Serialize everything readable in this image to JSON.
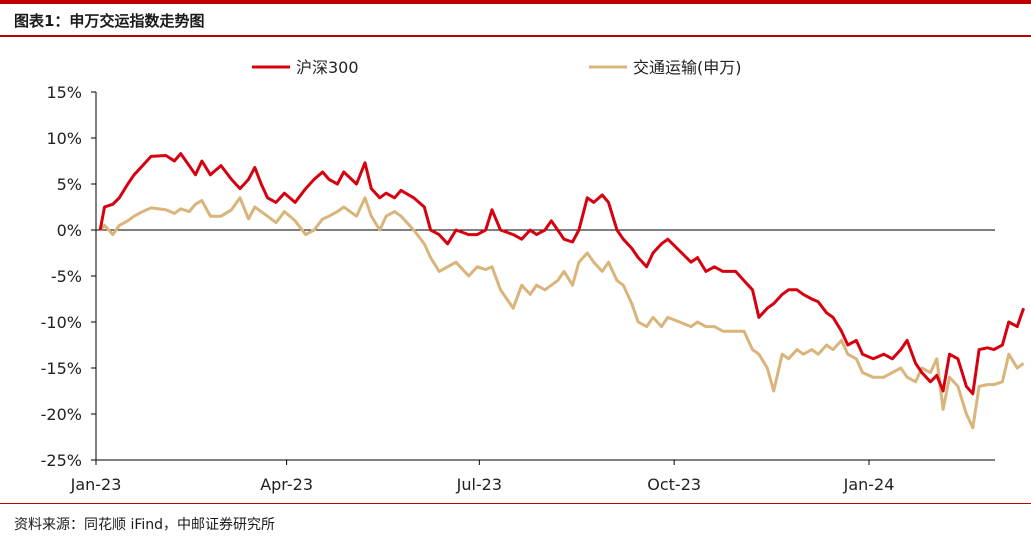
{
  "figure": {
    "title": "图表1：申万交运指数走势图",
    "source": "资料来源：同花顺 iFind，中邮证券研究所"
  },
  "colors": {
    "rule": "#c00000",
    "hs300": "#d7000f",
    "transport": "#d9b47b",
    "axis": "#000000"
  },
  "chart_data": {
    "type": "line",
    "title": "",
    "xlabel": "",
    "ylabel": "",
    "ylim": [
      -25,
      15
    ],
    "yticks": [
      15,
      10,
      5,
      0,
      -5,
      -10,
      -15,
      -20,
      -25
    ],
    "ytick_labels": [
      "15%",
      "10%",
      "5%",
      "0%",
      "-5%",
      "-10%",
      "-15%",
      "-20%",
      "-25%"
    ],
    "xlim": [
      "2023-01-01",
      "2024-03-01"
    ],
    "xticks": [
      "2023-01-01",
      "2023-04-01",
      "2023-07-01",
      "2023-10-01",
      "2024-01-01"
    ],
    "xtick_labels": [
      "Jan-23",
      "Apr-23",
      "Jul-23",
      "Oct-23",
      "Jan-24"
    ],
    "legend_position": "top",
    "grid": false,
    "zero_line": true,
    "series": [
      {
        "name": "沪深300",
        "color": "#d7000f",
        "points": [
          [
            "2023-01-03",
            0.0
          ],
          [
            "2023-01-05",
            2.5
          ],
          [
            "2023-01-09",
            2.8
          ],
          [
            "2023-01-12",
            3.5
          ],
          [
            "2023-01-16",
            5.0
          ],
          [
            "2023-01-19",
            6.0
          ],
          [
            "2023-01-23",
            7.0
          ],
          [
            "2023-01-27",
            8.0
          ],
          [
            "2023-02-03",
            8.1
          ],
          [
            "2023-02-07",
            7.5
          ],
          [
            "2023-02-10",
            8.3
          ],
          [
            "2023-02-14",
            7.0
          ],
          [
            "2023-02-17",
            6.0
          ],
          [
            "2023-02-20",
            7.5
          ],
          [
            "2023-02-24",
            6.0
          ],
          [
            "2023-03-01",
            7.0
          ],
          [
            "2023-03-06",
            5.5
          ],
          [
            "2023-03-10",
            4.5
          ],
          [
            "2023-03-14",
            5.5
          ],
          [
            "2023-03-17",
            6.8
          ],
          [
            "2023-03-20",
            5.0
          ],
          [
            "2023-03-23",
            3.5
          ],
          [
            "2023-03-27",
            3.0
          ],
          [
            "2023-03-31",
            4.0
          ],
          [
            "2023-04-05",
            3.0
          ],
          [
            "2023-04-10",
            4.5
          ],
          [
            "2023-04-14",
            5.5
          ],
          [
            "2023-04-18",
            6.3
          ],
          [
            "2023-04-21",
            5.5
          ],
          [
            "2023-04-25",
            5.0
          ],
          [
            "2023-04-28",
            6.3
          ],
          [
            "2023-05-04",
            5.0
          ],
          [
            "2023-05-08",
            7.3
          ],
          [
            "2023-05-11",
            4.5
          ],
          [
            "2023-05-15",
            3.5
          ],
          [
            "2023-05-18",
            4.0
          ],
          [
            "2023-05-22",
            3.5
          ],
          [
            "2023-05-25",
            4.3
          ],
          [
            "2023-05-31",
            3.5
          ],
          [
            "2023-06-05",
            2.5
          ],
          [
            "2023-06-08",
            0.0
          ],
          [
            "2023-06-12",
            -0.5
          ],
          [
            "2023-06-16",
            -1.5
          ],
          [
            "2023-06-20",
            0.0
          ],
          [
            "2023-06-26",
            -0.5
          ],
          [
            "2023-06-30",
            -0.5
          ],
          [
            "2023-07-04",
            0.0
          ],
          [
            "2023-07-07",
            2.2
          ],
          [
            "2023-07-11",
            0.0
          ],
          [
            "2023-07-17",
            -0.5
          ],
          [
            "2023-07-21",
            -1.0
          ],
          [
            "2023-07-25",
            0.0
          ],
          [
            "2023-07-28",
            -0.5
          ],
          [
            "2023-08-01",
            0.0
          ],
          [
            "2023-08-04",
            1.0
          ],
          [
            "2023-08-07",
            0.0
          ],
          [
            "2023-08-10",
            -1.0
          ],
          [
            "2023-08-14",
            -1.3
          ],
          [
            "2023-08-17",
            0.0
          ],
          [
            "2023-08-21",
            3.5
          ],
          [
            "2023-08-24",
            3.0
          ],
          [
            "2023-08-28",
            3.8
          ],
          [
            "2023-08-31",
            3.0
          ],
          [
            "2023-09-04",
            0.0
          ],
          [
            "2023-09-07",
            -1.0
          ],
          [
            "2023-09-11",
            -2.0
          ],
          [
            "2023-09-14",
            -3.0
          ],
          [
            "2023-09-18",
            -4.0
          ],
          [
            "2023-09-21",
            -2.5
          ],
          [
            "2023-09-25",
            -1.5
          ],
          [
            "2023-09-28",
            -1.0
          ],
          [
            "2023-10-09",
            -3.5
          ],
          [
            "2023-10-12",
            -3.0
          ],
          [
            "2023-10-16",
            -4.5
          ],
          [
            "2023-10-20",
            -4.0
          ],
          [
            "2023-10-24",
            -4.5
          ],
          [
            "2023-10-30",
            -4.5
          ],
          [
            "2023-11-03",
            -5.5
          ],
          [
            "2023-11-07",
            -6.5
          ],
          [
            "2023-11-10",
            -9.5
          ],
          [
            "2023-11-14",
            -8.5
          ],
          [
            "2023-11-17",
            -8.0
          ],
          [
            "2023-11-21",
            -7.0
          ],
          [
            "2023-11-24",
            -6.5
          ],
          [
            "2023-11-28",
            -6.5
          ],
          [
            "2023-12-01",
            -7.0
          ],
          [
            "2023-12-05",
            -7.5
          ],
          [
            "2023-12-08",
            -7.8
          ],
          [
            "2023-12-12",
            -9.0
          ],
          [
            "2023-12-15",
            -9.5
          ],
          [
            "2023-12-19",
            -11.0
          ],
          [
            "2023-12-22",
            -12.5
          ],
          [
            "2023-12-26",
            -12.0
          ],
          [
            "2023-12-29",
            -13.5
          ],
          [
            "2024-01-03",
            -14.0
          ],
          [
            "2024-01-08",
            -13.5
          ],
          [
            "2024-01-12",
            -14.0
          ],
          [
            "2024-01-16",
            -13.0
          ],
          [
            "2024-01-19",
            -12.0
          ],
          [
            "2024-01-23",
            -14.5
          ],
          [
            "2024-01-26",
            -15.5
          ],
          [
            "2024-01-30",
            -16.5
          ],
          [
            "2024-02-02",
            -15.8
          ],
          [
            "2024-02-05",
            -17.5
          ],
          [
            "2024-02-08",
            -13.5
          ],
          [
            "2024-02-12",
            -14.0
          ],
          [
            "2024-02-16",
            -17.0
          ],
          [
            "2024-02-19",
            -17.8
          ],
          [
            "2024-02-22",
            -13.0
          ],
          [
            "2024-02-26",
            -12.8
          ],
          [
            "2024-02-29",
            -13.0
          ],
          [
            "2024-03-04",
            -12.5
          ],
          [
            "2024-03-07",
            -10.0
          ],
          [
            "2024-03-11",
            -10.5
          ],
          [
            "2024-03-14",
            -8.5
          ]
        ]
      },
      {
        "name": "交通运输(申万)",
        "color": "#d9b47b",
        "points": [
          [
            "2023-01-03",
            0.0
          ],
          [
            "2023-01-05",
            0.5
          ],
          [
            "2023-01-09",
            -0.5
          ],
          [
            "2023-01-12",
            0.5
          ],
          [
            "2023-01-16",
            1.0
          ],
          [
            "2023-01-19",
            1.5
          ],
          [
            "2023-01-23",
            2.0
          ],
          [
            "2023-01-27",
            2.4
          ],
          [
            "2023-02-03",
            2.2
          ],
          [
            "2023-02-07",
            1.8
          ],
          [
            "2023-02-10",
            2.3
          ],
          [
            "2023-02-14",
            2.0
          ],
          [
            "2023-02-17",
            2.8
          ],
          [
            "2023-02-20",
            3.2
          ],
          [
            "2023-02-24",
            1.5
          ],
          [
            "2023-03-01",
            1.5
          ],
          [
            "2023-03-06",
            2.2
          ],
          [
            "2023-03-10",
            3.5
          ],
          [
            "2023-03-14",
            1.2
          ],
          [
            "2023-03-17",
            2.5
          ],
          [
            "2023-03-20",
            2.0
          ],
          [
            "2023-03-23",
            1.5
          ],
          [
            "2023-03-27",
            0.8
          ],
          [
            "2023-03-31",
            2.0
          ],
          [
            "2023-04-05",
            1.0
          ],
          [
            "2023-04-10",
            -0.5
          ],
          [
            "2023-04-14",
            0.0
          ],
          [
            "2023-04-18",
            1.2
          ],
          [
            "2023-04-21",
            1.5
          ],
          [
            "2023-04-25",
            2.0
          ],
          [
            "2023-04-28",
            2.5
          ],
          [
            "2023-05-04",
            1.5
          ],
          [
            "2023-05-08",
            3.5
          ],
          [
            "2023-05-11",
            1.5
          ],
          [
            "2023-05-15",
            0.0
          ],
          [
            "2023-05-18",
            1.5
          ],
          [
            "2023-05-22",
            2.0
          ],
          [
            "2023-05-25",
            1.5
          ],
          [
            "2023-05-31",
            0.0
          ],
          [
            "2023-06-05",
            -1.5
          ],
          [
            "2023-06-08",
            -3.0
          ],
          [
            "2023-06-12",
            -4.5
          ],
          [
            "2023-06-16",
            -4.0
          ],
          [
            "2023-06-20",
            -3.5
          ],
          [
            "2023-06-26",
            -5.0
          ],
          [
            "2023-06-30",
            -4.0
          ],
          [
            "2023-07-04",
            -4.3
          ],
          [
            "2023-07-07",
            -4.0
          ],
          [
            "2023-07-11",
            -6.5
          ],
          [
            "2023-07-17",
            -8.5
          ],
          [
            "2023-07-21",
            -6.0
          ],
          [
            "2023-07-25",
            -7.0
          ],
          [
            "2023-07-28",
            -6.0
          ],
          [
            "2023-08-01",
            -6.5
          ],
          [
            "2023-08-04",
            -6.0
          ],
          [
            "2023-08-07",
            -5.5
          ],
          [
            "2023-08-10",
            -4.5
          ],
          [
            "2023-08-14",
            -6.0
          ],
          [
            "2023-08-17",
            -3.5
          ],
          [
            "2023-08-21",
            -2.5
          ],
          [
            "2023-08-24",
            -3.5
          ],
          [
            "2023-08-28",
            -4.5
          ],
          [
            "2023-08-31",
            -3.5
          ],
          [
            "2023-09-04",
            -5.5
          ],
          [
            "2023-09-07",
            -6.0
          ],
          [
            "2023-09-11",
            -8.0
          ],
          [
            "2023-09-14",
            -10.0
          ],
          [
            "2023-09-18",
            -10.5
          ],
          [
            "2023-09-21",
            -9.5
          ],
          [
            "2023-09-25",
            -10.5
          ],
          [
            "2023-09-28",
            -9.5
          ],
          [
            "2023-10-09",
            -10.5
          ],
          [
            "2023-10-12",
            -10.0
          ],
          [
            "2023-10-16",
            -10.5
          ],
          [
            "2023-10-20",
            -10.5
          ],
          [
            "2023-10-24",
            -11.0
          ],
          [
            "2023-10-30",
            -11.0
          ],
          [
            "2023-11-03",
            -11.0
          ],
          [
            "2023-11-07",
            -13.0
          ],
          [
            "2023-11-10",
            -13.5
          ],
          [
            "2023-11-14",
            -15.0
          ],
          [
            "2023-11-17",
            -17.5
          ],
          [
            "2023-11-21",
            -13.5
          ],
          [
            "2023-11-24",
            -14.0
          ],
          [
            "2023-11-28",
            -13.0
          ],
          [
            "2023-12-01",
            -13.5
          ],
          [
            "2023-12-05",
            -13.0
          ],
          [
            "2023-12-08",
            -13.5
          ],
          [
            "2023-12-12",
            -12.5
          ],
          [
            "2023-12-15",
            -13.0
          ],
          [
            "2023-12-19",
            -12.0
          ],
          [
            "2023-12-22",
            -13.5
          ],
          [
            "2023-12-26",
            -14.0
          ],
          [
            "2023-12-29",
            -15.5
          ],
          [
            "2024-01-03",
            -16.0
          ],
          [
            "2024-01-08",
            -16.0
          ],
          [
            "2024-01-12",
            -15.5
          ],
          [
            "2024-01-16",
            -15.0
          ],
          [
            "2024-01-19",
            -16.0
          ],
          [
            "2024-01-23",
            -16.5
          ],
          [
            "2024-01-26",
            -15.0
          ],
          [
            "2024-01-30",
            -15.5
          ],
          [
            "2024-02-02",
            -14.0
          ],
          [
            "2024-02-05",
            -19.5
          ],
          [
            "2024-02-08",
            -16.0
          ],
          [
            "2024-02-12",
            -17.0
          ],
          [
            "2024-02-16",
            -20.0
          ],
          [
            "2024-02-19",
            -21.5
          ],
          [
            "2024-02-22",
            -17.0
          ],
          [
            "2024-02-26",
            -16.8
          ],
          [
            "2024-02-29",
            -16.8
          ],
          [
            "2024-03-04",
            -16.5
          ],
          [
            "2024-03-07",
            -13.5
          ],
          [
            "2024-03-11",
            -15.0
          ],
          [
            "2024-03-14",
            -14.5
          ]
        ]
      }
    ]
  }
}
